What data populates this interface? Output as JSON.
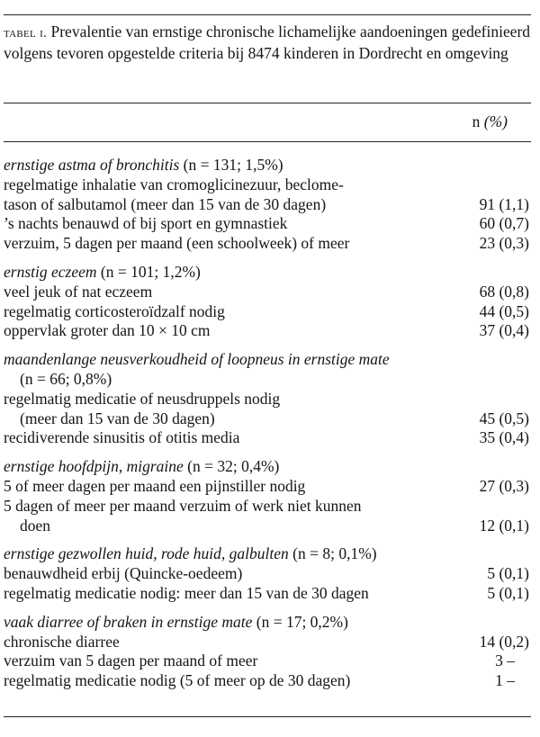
{
  "caption": {
    "label": "tabel i.",
    "text": " Prevalentie van ernstige chronische lichamelijke aandoeningen gedefinieerd volgens tevoren opgestelde criteria bij 8474 kinderen in Dordrecht en omgeving"
  },
  "column_header": {
    "n": "n ",
    "pct": "(%)"
  },
  "sections": [
    {
      "title": "ernstige astma of bronchitis",
      "stats": " (n = 131; 1,5%)",
      "rows": [
        {
          "text": "regelmatige inhalatie van cromoglicinezuur, beclome-",
          "value": ""
        },
        {
          "text": "tason of salbutamol (meer dan 15 van de 30 dagen)",
          "value": "91 (1,1)"
        },
        {
          "text": "’s nachts benauwd of bij sport en gymnastiek",
          "value": "60 (0,7)"
        },
        {
          "text": "verzuim, 5 dagen per maand (een schoolweek) of meer",
          "value": "23 (0,3)"
        }
      ]
    },
    {
      "title": "ernstig eczeem",
      "stats": " (n = 101; 1,2%)",
      "rows": [
        {
          "text": "veel jeuk of nat eczeem",
          "value": "68 (0,8)"
        },
        {
          "text": "regelmatig corticosteroïdzalf nodig",
          "value": "44 (0,5)"
        },
        {
          "text": "oppervlak groter dan 10 × 10 cm",
          "value": "37 (0,4)"
        }
      ]
    },
    {
      "title": "maandenlange neusverkoudheid of loopneus in ernstige mate",
      "stats": "",
      "rows": [
        {
          "text": "(n = 66; 0,8%)",
          "value": "",
          "indent": true
        },
        {
          "text": "regelmatig medicatie of neusdruppels nodig",
          "value": ""
        },
        {
          "text": "(meer dan 15 van de 30 dagen)",
          "value": "45 (0,5)",
          "indent": true
        },
        {
          "text": "recidiverende sinusitis of otitis media",
          "value": "35 (0,4)"
        }
      ]
    },
    {
      "title": "ernstige hoofdpijn, migraine",
      "stats": " (n = 32; 0,4%)",
      "rows": [
        {
          "text": "5 of meer dagen per maand een pijnstiller nodig",
          "value": "27 (0,3)"
        },
        {
          "text": "5 dagen of meer per maand verzuim of werk niet kunnen",
          "value": ""
        },
        {
          "text": "doen",
          "value": "12 (0,1)",
          "indent": true
        }
      ]
    },
    {
      "title": "ernstige gezwollen huid, rode huid, galbulten",
      "stats": " (n = 8; 0,1%)",
      "rows": [
        {
          "text": "benauwdheid erbij (Quincke-oedeem)",
          "value": "5 (0,1)"
        },
        {
          "text": "regelmatig medicatie nodig: meer dan 15 van de 30 dagen",
          "value": "5 (0,1)"
        }
      ]
    },
    {
      "title": "vaak diarree of braken in ernstige mate",
      "stats": " (n = 17; 0,2%)",
      "rows": [
        {
          "text": "chronische diarree",
          "value": "14 (0,2)"
        },
        {
          "text": "verzuim van 5 dagen per maand of meer",
          "value": "3 –",
          "dash": true
        },
        {
          "text": "regelmatig medicatie nodig (5 of meer op de 30 dagen)",
          "value": "1 –",
          "dash": true
        }
      ]
    }
  ]
}
